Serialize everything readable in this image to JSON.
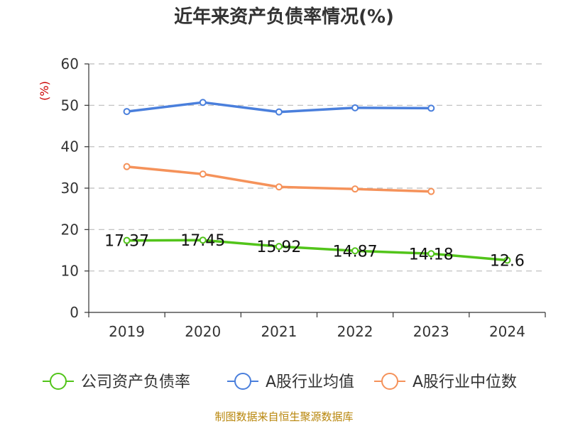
{
  "title": "近年来资产负债率情况(%)",
  "source": "制图数据来自恒生聚源数据库",
  "chart_data": {
    "type": "line",
    "title": "近年来资产负债率情况(%)",
    "unit_label": "(%)",
    "categories": [
      "2019",
      "2020",
      "2021",
      "2022",
      "2023",
      "2024"
    ],
    "ylim": [
      0,
      60
    ],
    "yticks": [
      0,
      10,
      20,
      30,
      40,
      50,
      60
    ],
    "grid": true,
    "legend_position": "bottom",
    "series": [
      {
        "name": "公司资产负债率",
        "color": "#52c41a",
        "values": [
          17.37,
          17.45,
          15.92,
          14.87,
          14.18,
          12.6
        ],
        "labels": [
          "17.37",
          "17.45",
          "15.92",
          "14.87",
          "14.18",
          "12.6"
        ]
      },
      {
        "name": "A股行业均值",
        "color": "#4a7fdc",
        "values": [
          48.5,
          50.7,
          48.4,
          49.4,
          49.3,
          null
        ]
      },
      {
        "name": "A股行业中位数",
        "color": "#f5925a",
        "values": [
          35.2,
          33.4,
          30.3,
          29.8,
          29.2,
          null
        ]
      }
    ]
  }
}
